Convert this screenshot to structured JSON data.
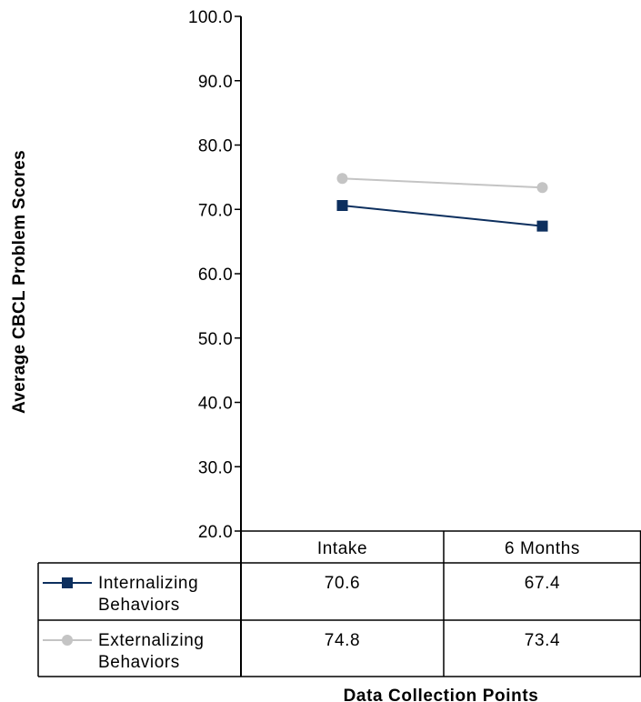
{
  "chart_data": {
    "type": "line",
    "categories": [
      "Intake",
      "6 Months"
    ],
    "series": [
      {
        "name": "Internalizing Behaviors",
        "name_lines": [
          "Internalizing",
          "Behaviors"
        ],
        "values": [
          70.6,
          67.4
        ],
        "value_labels": [
          "70.6",
          "67.4"
        ],
        "color": "#0d2f5e",
        "marker": "square"
      },
      {
        "name": "Externalizing Behaviors",
        "name_lines": [
          "Externalizing",
          "Behaviors"
        ],
        "values": [
          74.8,
          73.4
        ],
        "value_labels": [
          "74.8",
          "73.4"
        ],
        "color": "#c4c4c4",
        "marker": "circle"
      }
    ],
    "title": "",
    "xlabel": "Data Collection Points",
    "ylabel": "Average CBCL Problem Scores",
    "ylim": [
      20,
      100
    ],
    "yticks": [
      "20.0",
      "30.0",
      "40.0",
      "50.0",
      "60.0",
      "70.0",
      "80.0",
      "90.0",
      "100.0"
    ],
    "grid": false,
    "legend": "data-table"
  }
}
